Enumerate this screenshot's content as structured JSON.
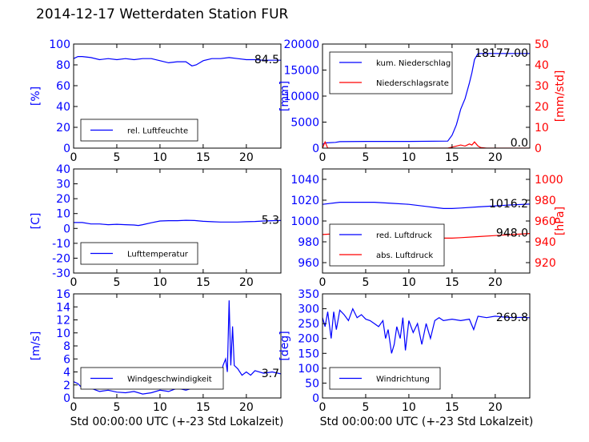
{
  "title": "2014-12-17 Wetterdaten Station FUR",
  "xlabel": "Std 00:00:00 UTC (+-23 Std Lokalzeit)",
  "colors": {
    "primary": "#0000ff",
    "secondary": "#ff0000"
  },
  "chart_data": [
    {
      "type": "line",
      "xlim": [
        0,
        24
      ],
      "xticks": [
        "0",
        "5",
        "10",
        "15",
        "20"
      ],
      "ylabel": "[%]",
      "ylim": [
        0,
        100
      ],
      "yticks": [
        "0",
        "20",
        "40",
        "60",
        "80",
        "100"
      ],
      "last_value": "84.5",
      "series": [
        {
          "name": "rel. Luftfeuchte",
          "color": "#0000ff",
          "x": [
            0,
            0.5,
            1,
            2,
            3,
            4,
            5,
            6,
            7,
            8,
            9,
            10,
            11,
            12,
            13,
            13.7,
            14.2,
            15,
            16,
            17,
            18,
            19,
            20,
            21,
            22,
            23,
            24
          ],
          "y": [
            86,
            88,
            88,
            87,
            85,
            86,
            85,
            86,
            85,
            86,
            86,
            84,
            82,
            83,
            83,
            79,
            80,
            84,
            86,
            86,
            87,
            86,
            85,
            85,
            84.5,
            84.5,
            84.5
          ]
        }
      ]
    },
    {
      "type": "line",
      "xlim": [
        0,
        24
      ],
      "xticks": [
        "0",
        "5",
        "10",
        "15",
        "20"
      ],
      "ylabel": "[mm]",
      "ylim": [
        0,
        20000
      ],
      "yticks": [
        "0",
        "5000",
        "10000",
        "15000",
        "20000"
      ],
      "ylabel2": "[mm/std]",
      "ylim2": [
        0,
        50
      ],
      "yticks2": [
        "0",
        "10",
        "20",
        "30",
        "40",
        "50"
      ],
      "last_value": "18177.00",
      "last_value2": "0.0",
      "series": [
        {
          "name": "kum. Niederschlag",
          "color": "#0000ff",
          "axis": "left",
          "x": [
            0,
            0.3,
            1.5,
            2,
            5,
            10,
            14.5,
            15,
            15.5,
            16,
            16.5,
            17,
            17.3,
            17.6,
            18,
            20,
            24
          ],
          "y": [
            700,
            1000,
            1100,
            1250,
            1300,
            1300,
            1350,
            2500,
            4500,
            7500,
            9500,
            12500,
            14500,
            17000,
            18177,
            18177,
            18177
          ]
        },
        {
          "name": "Niederschlagsrate",
          "color": "#ff0000",
          "axis": "right",
          "x": [
            0,
            0.3,
            0.6,
            1,
            14.5,
            15,
            15.5,
            16,
            16.5,
            17,
            17.3,
            17.6,
            17.8,
            18,
            18.3,
            19,
            24
          ],
          "y": [
            0,
            3,
            0,
            0,
            0,
            0.5,
            1,
            1.5,
            1,
            2,
            1.5,
            3,
            2,
            1,
            0.3,
            0,
            0
          ]
        }
      ]
    },
    {
      "type": "line",
      "xlim": [
        0,
        24
      ],
      "xticks": [
        "0",
        "5",
        "10",
        "15",
        "20"
      ],
      "ylabel": "[C]",
      "ylim": [
        -30,
        40
      ],
      "yticks": [
        "-30",
        "-20",
        "-10",
        "0",
        "10",
        "20",
        "30",
        "40"
      ],
      "last_value": "5.3",
      "series": [
        {
          "name": "Lufttemperatur",
          "color": "#0000ff",
          "x": [
            0,
            1,
            2,
            3,
            4,
            5,
            6,
            7,
            7.5,
            8,
            9,
            10,
            11,
            12,
            13,
            14,
            15,
            16,
            17,
            18,
            19,
            20,
            21,
            22,
            23,
            24
          ],
          "y": [
            4,
            4,
            3,
            3,
            2.5,
            2.8,
            2.5,
            2.3,
            2,
            2.5,
            3.8,
            5,
            5.2,
            5.2,
            5.5,
            5.3,
            4.8,
            4.5,
            4.3,
            4.3,
            4.3,
            4.5,
            4.7,
            5,
            5.2,
            5.3
          ]
        }
      ]
    },
    {
      "type": "line",
      "xlim": [
        0,
        24
      ],
      "xticks": [
        "0",
        "5",
        "10",
        "15",
        "20"
      ],
      "ylabel": "",
      "ylim": [
        950,
        1050
      ],
      "yticks": [
        "960",
        "980",
        "1000",
        "1020",
        "1040"
      ],
      "ylabel2": "[hPa]",
      "ylim2": [
        910,
        1010
      ],
      "yticks2": [
        "920",
        "940",
        "960",
        "980",
        "1000"
      ],
      "last_value": "1016.2",
      "last_value2": "948.0",
      "series": [
        {
          "name": "red. Luftdruck",
          "color": "#0000ff",
          "axis": "left",
          "x": [
            0,
            2,
            4,
            6,
            8,
            10,
            12,
            13,
            14,
            15,
            16,
            18,
            20,
            22,
            24
          ],
          "y": [
            1016,
            1018,
            1018,
            1018,
            1017,
            1016,
            1014,
            1013,
            1012,
            1012,
            1012.5,
            1013.5,
            1014.5,
            1015.5,
            1016.2
          ]
        },
        {
          "name": "abs. Luftdruck",
          "color": "#ff0000",
          "axis": "right",
          "x": [
            0,
            2,
            4,
            6,
            8,
            10,
            12,
            13,
            14,
            15,
            16,
            18,
            20,
            22,
            24
          ],
          "y": [
            947,
            948,
            948,
            948,
            947.5,
            946.5,
            945,
            944,
            943.5,
            943.5,
            944,
            945,
            946,
            947,
            948
          ]
        }
      ]
    },
    {
      "type": "line",
      "xlim": [
        0,
        24
      ],
      "xticks": [
        "0",
        "5",
        "10",
        "15",
        "20"
      ],
      "ylabel": "[m/s]",
      "ylim": [
        0,
        16
      ],
      "yticks": [
        "0",
        "2",
        "4",
        "6",
        "8",
        "10",
        "12",
        "14",
        "16"
      ],
      "last_value": "3.7",
      "series": [
        {
          "name": "Windgeschwindigkeit",
          "color": "#0000ff",
          "x": [
            0,
            0.5,
            1,
            1.5,
            2,
            3,
            4,
            5,
            6,
            7,
            8,
            9,
            10,
            11,
            12,
            13,
            14,
            15,
            16,
            16.5,
            17,
            17.3,
            17.6,
            17.8,
            18,
            18.2,
            18.4,
            18.6,
            19,
            19.5,
            20,
            20.5,
            21,
            22,
            23,
            24
          ],
          "y": [
            2.5,
            2.2,
            1.5,
            2.0,
            1.5,
            1.0,
            1.2,
            0.9,
            0.8,
            1.0,
            0.6,
            0.8,
            1.2,
            1.0,
            1.5,
            1.2,
            1.6,
            2.0,
            2.5,
            3.0,
            2.5,
            5.0,
            6.0,
            4.0,
            15.0,
            5.0,
            11.0,
            5.0,
            4.5,
            3.5,
            4.0,
            3.5,
            4.2,
            3.8,
            4.0,
            3.7
          ]
        }
      ]
    },
    {
      "type": "line",
      "xlim": [
        0,
        24
      ],
      "xticks": [
        "0",
        "5",
        "10",
        "15",
        "20"
      ],
      "ylabel": "[deg]",
      "ylim": [
        0,
        350
      ],
      "yticks": [
        "0",
        "50",
        "100",
        "150",
        "200",
        "250",
        "300",
        "350"
      ],
      "last_value": "269.8",
      "series": [
        {
          "name": "Windrichtung",
          "color": "#0000ff",
          "x": [
            0,
            0.3,
            0.6,
            1,
            1.3,
            1.6,
            2,
            2.5,
            3,
            3.5,
            4,
            4.5,
            5,
            5.5,
            6,
            6.5,
            7,
            7.3,
            7.6,
            8,
            8.3,
            8.6,
            9,
            9.3,
            9.6,
            10,
            10.5,
            11,
            11.5,
            12,
            12.5,
            13,
            13.5,
            14,
            15,
            16,
            17,
            17.5,
            18,
            19,
            20,
            21,
            22,
            23,
            24
          ],
          "y": [
            270,
            240,
            290,
            200,
            290,
            230,
            295,
            280,
            260,
            300,
            270,
            280,
            265,
            260,
            250,
            240,
            260,
            200,
            230,
            150,
            180,
            240,
            200,
            270,
            160,
            260,
            220,
            250,
            180,
            250,
            200,
            260,
            270,
            260,
            265,
            260,
            265,
            230,
            275,
            270,
            275,
            272,
            270,
            271,
            269.8
          ]
        }
      ]
    }
  ]
}
